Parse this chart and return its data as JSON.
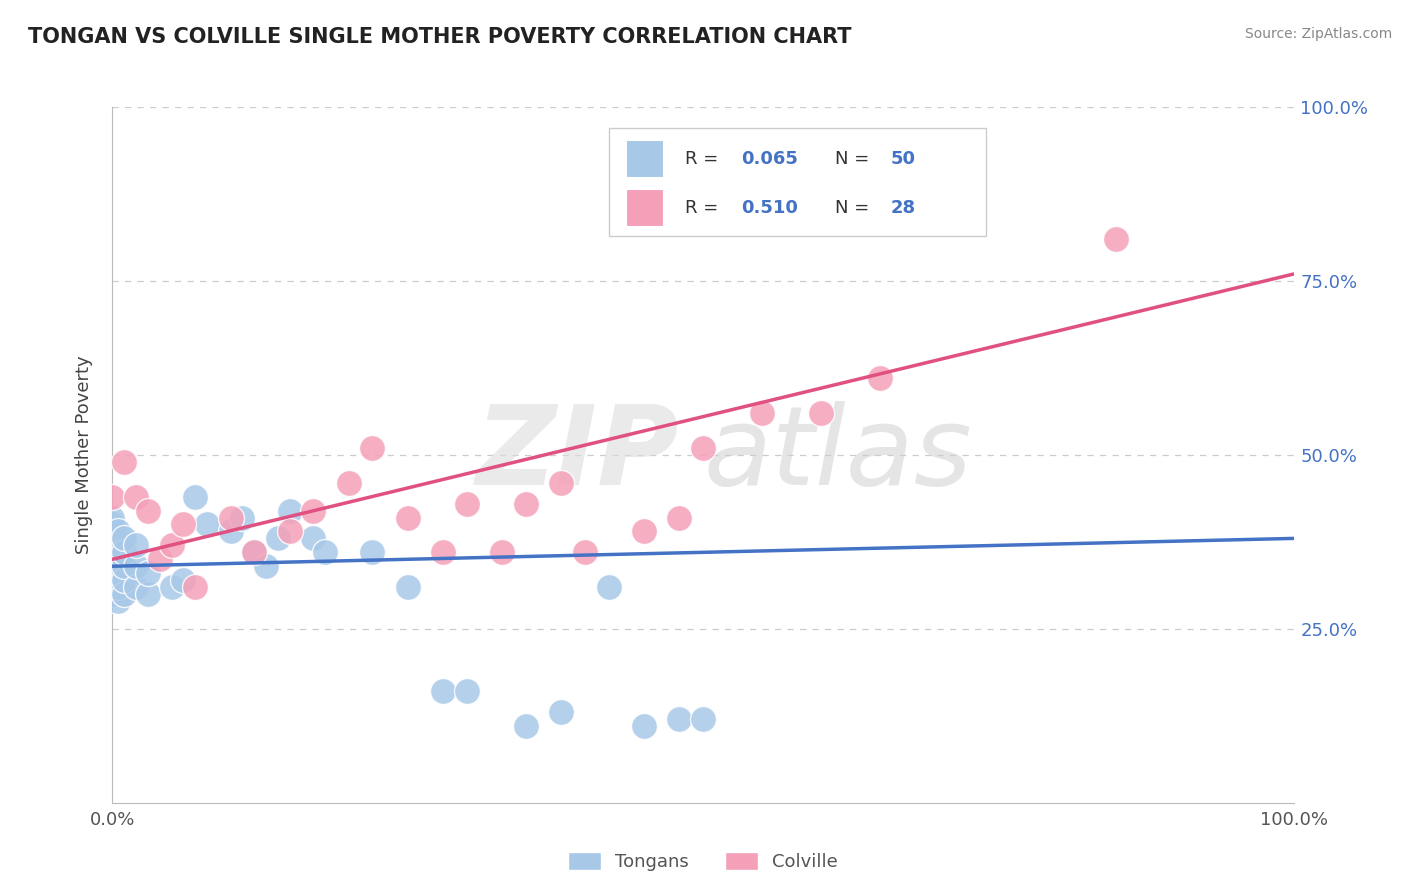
{
  "title": "TONGAN VS COLVILLE SINGLE MOTHER POVERTY CORRELATION CHART",
  "source": "Source: ZipAtlas.com",
  "ylabel": "Single Mother Poverty",
  "tongan_color": "#a8c8e8",
  "colville_color": "#f4a0b8",
  "tongan_line_color": "#4472c4",
  "colville_line_color": "#e05080",
  "grid_color": "#cccccc",
  "blue_text": "#4472c4",
  "tongan_x": [
    0.0,
    0.0,
    0.0,
    0.0,
    0.0,
    0.0,
    0.0,
    0.0,
    0.0,
    0.0,
    0.0,
    0.0,
    0.005,
    0.005,
    0.005,
    0.005,
    0.005,
    0.005,
    0.01,
    0.01,
    0.01,
    0.01,
    0.01,
    0.02,
    0.02,
    0.02,
    0.03,
    0.03,
    0.05,
    0.06,
    0.07,
    0.08,
    0.1,
    0.11,
    0.12,
    0.13,
    0.14,
    0.15,
    0.17,
    0.18,
    0.22,
    0.25,
    0.28,
    0.3,
    0.35,
    0.38,
    0.42,
    0.45,
    0.48,
    0.5
  ],
  "tongan_y": [
    0.3,
    0.31,
    0.32,
    0.33,
    0.34,
    0.35,
    0.36,
    0.37,
    0.38,
    0.39,
    0.4,
    0.41,
    0.29,
    0.31,
    0.33,
    0.35,
    0.37,
    0.39,
    0.3,
    0.32,
    0.34,
    0.36,
    0.38,
    0.31,
    0.34,
    0.37,
    0.3,
    0.33,
    0.31,
    0.32,
    0.44,
    0.4,
    0.39,
    0.41,
    0.36,
    0.34,
    0.38,
    0.42,
    0.38,
    0.36,
    0.36,
    0.31,
    0.16,
    0.16,
    0.11,
    0.13,
    0.31,
    0.11,
    0.12,
    0.12
  ],
  "colville_x": [
    0.0,
    0.01,
    0.02,
    0.03,
    0.04,
    0.05,
    0.06,
    0.07,
    0.1,
    0.12,
    0.15,
    0.17,
    0.2,
    0.22,
    0.25,
    0.28,
    0.3,
    0.33,
    0.35,
    0.38,
    0.4,
    0.45,
    0.48,
    0.5,
    0.55,
    0.6,
    0.65,
    0.85
  ],
  "colville_y": [
    0.44,
    0.49,
    0.44,
    0.42,
    0.35,
    0.37,
    0.4,
    0.31,
    0.41,
    0.36,
    0.39,
    0.42,
    0.46,
    0.51,
    0.41,
    0.36,
    0.43,
    0.36,
    0.43,
    0.46,
    0.36,
    0.39,
    0.41,
    0.51,
    0.56,
    0.56,
    0.61,
    0.81
  ],
  "tongan_line": [
    0.0,
    1.0,
    0.34,
    0.38
  ],
  "colville_line": [
    0.0,
    1.0,
    0.35,
    0.76
  ],
  "xlim": [
    0.0,
    1.0
  ],
  "ylim": [
    0.0,
    1.0
  ],
  "yticks": [
    0.25,
    0.5,
    0.75,
    1.0
  ],
  "xticks": [
    0.0,
    1.0
  ],
  "ytick_labels": [
    "25.0%",
    "50.0%",
    "75.0%",
    "100.0%"
  ],
  "xtick_labels": [
    "0.0%",
    "100.0%"
  ]
}
